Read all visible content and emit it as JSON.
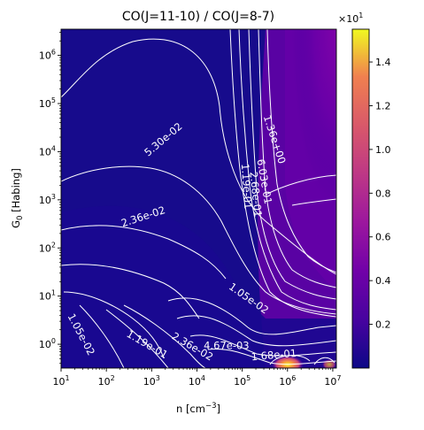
{
  "chart_data": {
    "type": "heatmap",
    "title": "CO(J=11-10) / CO(J=8-7)",
    "xlabel": "n [cm",
    "xlabel_sup": "−3",
    "xlabel_end": "]",
    "ylabel": "G",
    "ylabel_sub": "0",
    "ylabel_end": " [Habing]",
    "x_scale": "log",
    "y_scale": "log",
    "xlim": [
      10,
      12000000
    ],
    "ylim": [
      0.32,
      3500000
    ],
    "x_ticks": [
      {
        "value": 10,
        "base": "10",
        "exp": "1"
      },
      {
        "value": 100,
        "base": "10",
        "exp": "2"
      },
      {
        "value": 1000,
        "base": "10",
        "exp": "3"
      },
      {
        "value": 10000,
        "base": "10",
        "exp": "4"
      },
      {
        "value": 100000,
        "base": "10",
        "exp": "5"
      },
      {
        "value": 1000000,
        "base": "10",
        "exp": "6"
      },
      {
        "value": 10000000,
        "base": "10",
        "exp": "7"
      }
    ],
    "y_ticks": [
      {
        "value": 1,
        "base": "10",
        "exp": "0"
      },
      {
        "value": 10,
        "base": "10",
        "exp": "1"
      },
      {
        "value": 100,
        "base": "10",
        "exp": "2"
      },
      {
        "value": 1000,
        "base": "10",
        "exp": "3"
      },
      {
        "value": 10000,
        "base": "10",
        "exp": "4"
      },
      {
        "value": 100000,
        "base": "10",
        "exp": "5"
      },
      {
        "value": 1000000,
        "base": "10",
        "exp": "6"
      }
    ],
    "colorbar": {
      "colormap": "plasma",
      "range": [
        0.0,
        1.55
      ],
      "ticks": [
        {
          "value": 0.2,
          "label": "0.2"
        },
        {
          "value": 0.4,
          "label": "0.4"
        },
        {
          "value": 0.6,
          "label": "0.6"
        },
        {
          "value": 0.8,
          "label": "0.8"
        },
        {
          "value": 1.0,
          "label": "1.0"
        },
        {
          "value": 1.2,
          "label": "1.2"
        },
        {
          "value": 1.4,
          "label": "1.4"
        }
      ],
      "multiplier_base": "×10",
      "multiplier_exp": "1"
    },
    "contour_labels": [
      {
        "text": "5.30e-02",
        "x": 1800,
        "y": 18000,
        "angle": -40
      },
      {
        "text": "2.36e-02",
        "x": 650,
        "y": 450,
        "angle": -18
      },
      {
        "text": "1.36e+00",
        "x": 520000,
        "y": 18000,
        "angle": 72
      },
      {
        "text": "6.03e-01",
        "x": 310000,
        "y": 2400,
        "angle": 80
      },
      {
        "text": "2.68e-01",
        "x": 200000,
        "y": 1300,
        "angle": 84
      },
      {
        "text": "1.19e-01",
        "x": 125000,
        "y": 1900,
        "angle": 86
      },
      {
        "text": "1.05e-02",
        "x": 140000,
        "y": 9,
        "angle": 35
      },
      {
        "text": "1.05e-02",
        "x": 28,
        "y": 1.6,
        "angle": 62
      },
      {
        "text": "1.19e-01",
        "x": 800,
        "y": 1.0,
        "angle": 30
      },
      {
        "text": "2.36e-02",
        "x": 8000,
        "y": 0.9,
        "angle": 30
      },
      {
        "text": "4.67e-03",
        "x": 45000,
        "y": 0.95,
        "angle": 0
      },
      {
        "text": "1.68e-01",
        "x": 500000,
        "y": 0.6,
        "angle": -5
      }
    ],
    "grid": false,
    "legend": "none"
  }
}
